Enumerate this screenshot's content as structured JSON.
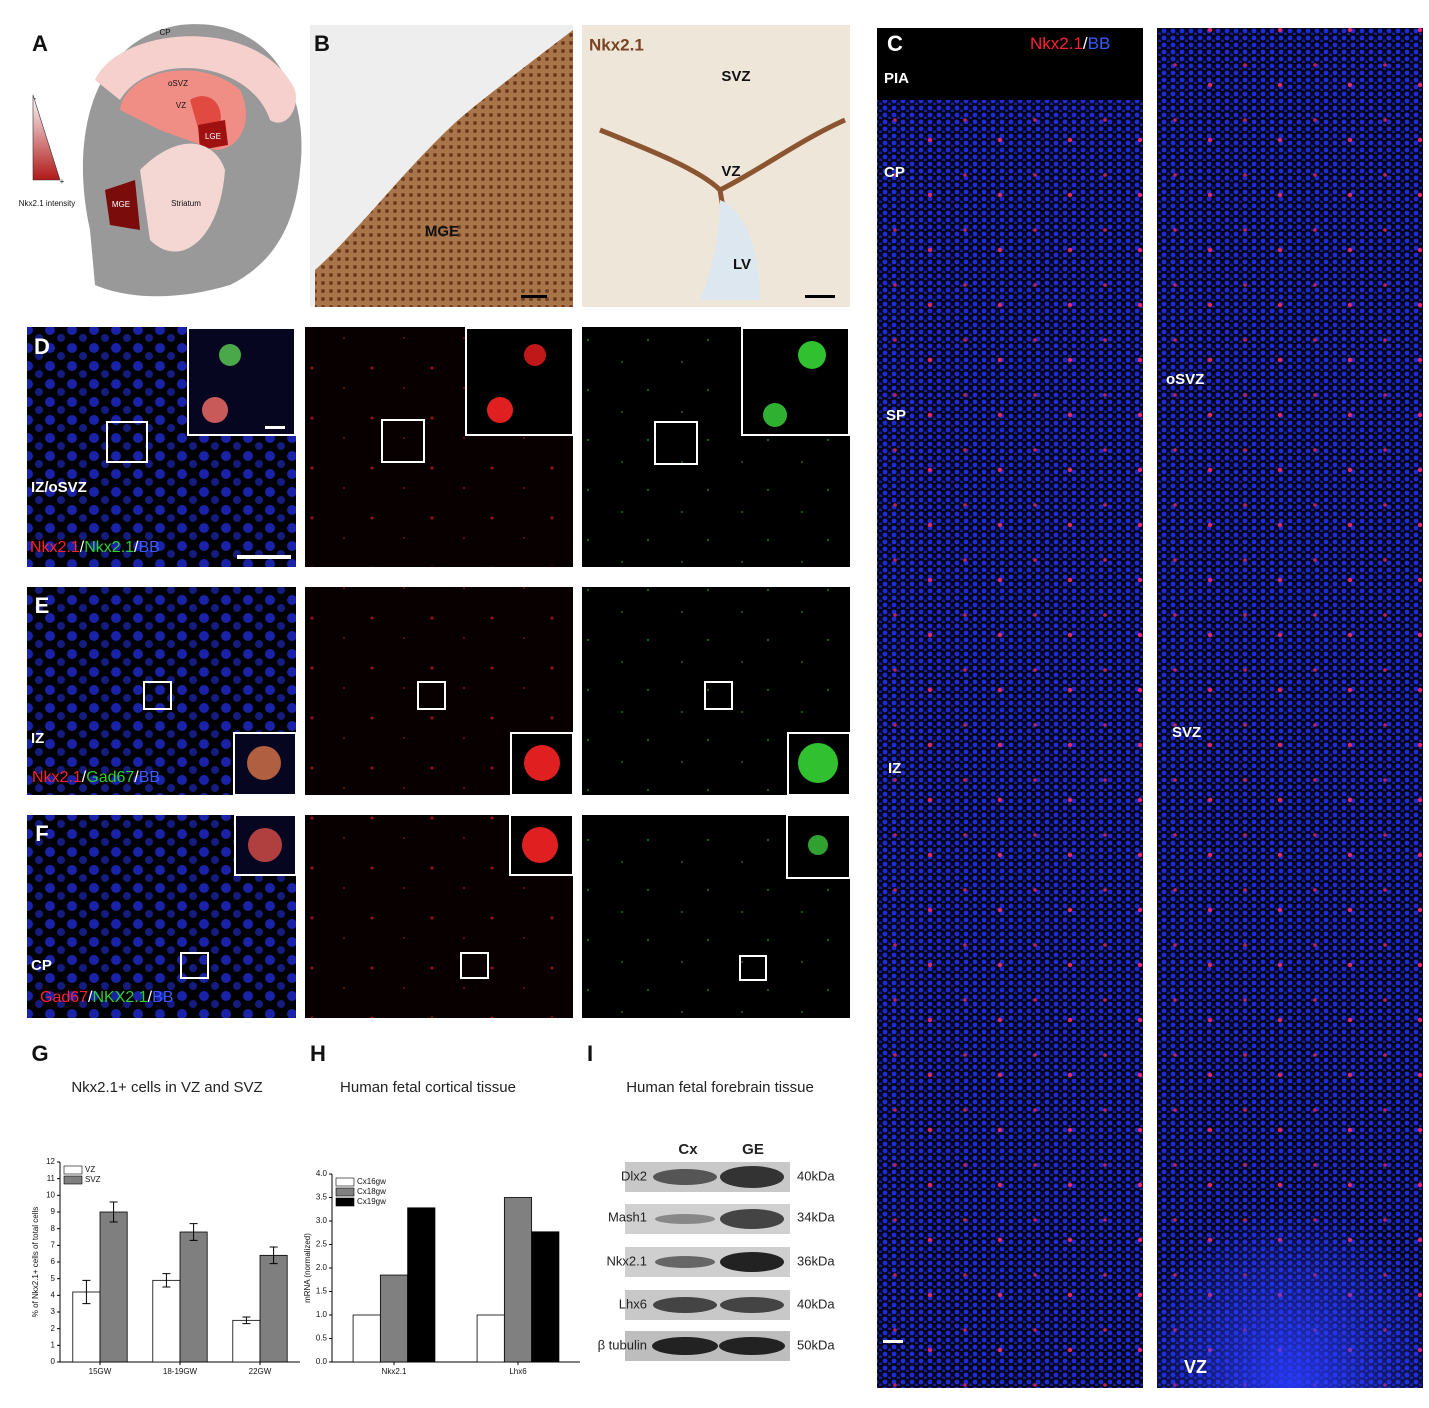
{
  "panel_labels": [
    "A",
    "B",
    "C",
    "D",
    "E",
    "F",
    "G",
    "H",
    "I"
  ],
  "panel_a": {
    "regions": [
      "CP",
      "oSVZ",
      "VZ",
      "LGE",
      "MGE",
      "Striatum"
    ],
    "scale_label": "Nkx2.1 intensity",
    "scale_ends": [
      "-",
      "+"
    ]
  },
  "panel_b": {
    "left_labels": [
      "MGE"
    ],
    "stain": "Nkx2.1",
    "right_labels": [
      "SVZ",
      "VZ",
      "LV"
    ]
  },
  "panel_c": {
    "legend": [
      "Nkx2.1",
      "/",
      "BB"
    ],
    "left_labels": [
      "PIA",
      "CP",
      "SP",
      "IZ"
    ],
    "right_labels": [
      "oSVZ",
      "SVZ",
      "VZ"
    ]
  },
  "panel_d": {
    "region": "IZ/oSVZ",
    "legend": [
      "Nkx2.1",
      "/",
      "Nkx2.1",
      "/",
      "BB"
    ]
  },
  "panel_e": {
    "region": "IZ",
    "legend": [
      "Nkx2.1",
      "/",
      "Gad67",
      "/",
      "BB"
    ]
  },
  "panel_f": {
    "region": "CP",
    "legend": [
      "Gad67",
      "/",
      "NKX2.1",
      "/",
      "BB"
    ]
  },
  "panel_i": {
    "title": "Human fetal forebrain tissue",
    "lanes": [
      "Cx",
      "GE"
    ],
    "rows": [
      [
        "Dlx2",
        "40kDa"
      ],
      [
        "Mash1",
        "34kDa"
      ],
      [
        "Nkx2.1",
        "36kDa"
      ],
      [
        "Lhx6",
        "40kDa"
      ],
      [
        "β tubulin",
        "50kDa"
      ]
    ]
  },
  "chart_data": [
    {
      "type": "bar",
      "title": "Nkx2.1+ cells in VZ and SVZ",
      "ylabel": "% of Nkx2.1+ cells of total cells",
      "categories": [
        "15GW",
        "18-19GW",
        "22GW"
      ],
      "series": [
        {
          "name": "VZ",
          "color": "#ffffff",
          "values": [
            4.2,
            4.9,
            2.5
          ],
          "errors": [
            0.7,
            0.4,
            0.2
          ]
        },
        {
          "name": "SVZ",
          "color": "#7f7f7f",
          "values": [
            9.0,
            7.8,
            6.4
          ],
          "errors": [
            0.6,
            0.5,
            0.5
          ]
        }
      ],
      "ylim": [
        0,
        12
      ],
      "yticks": [
        0,
        1,
        2,
        3,
        4,
        5,
        6,
        7,
        8,
        9,
        10,
        11,
        12
      ],
      "legend": "top-left"
    },
    {
      "type": "bar",
      "title": "Human fetal cortical tissue",
      "ylabel": "mRNA (normalized)",
      "categories": [
        "Nkx2.1",
        "Lhx6"
      ],
      "series": [
        {
          "name": "Cx16gw",
          "color": "#ffffff",
          "values": [
            1.0,
            1.0
          ]
        },
        {
          "name": "Cx18gw",
          "color": "#808080",
          "values": [
            1.85,
            3.5
          ]
        },
        {
          "name": "Cx19gw",
          "color": "#000000",
          "values": [
            3.28,
            2.77
          ]
        }
      ],
      "ylim": [
        0,
        4.0
      ],
      "yticks": [
        {
          "value": 0,
          "label": "0.0"
        },
        {
          "value": 0.5,
          "label": "0.5"
        },
        {
          "value": 1,
          "label": "1.0"
        },
        {
          "value": 1.5,
          "label": "1.5"
        },
        {
          "value": 2,
          "label": "2.0"
        },
        {
          "value": 2.5,
          "label": "2.5"
        },
        {
          "value": 3,
          "label": "3.0"
        },
        {
          "value": 3.5,
          "label": "3.5"
        },
        {
          "value": 4,
          "label": "4.0"
        }
      ],
      "legend": "top-left"
    }
  ]
}
